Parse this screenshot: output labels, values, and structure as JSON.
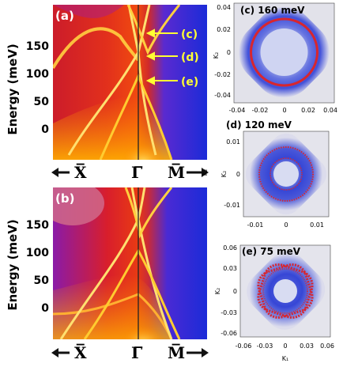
{
  "panel_a": {
    "label": "(a)",
    "annotations": [
      "(c)",
      "(d)",
      "(e)"
    ],
    "y_title": "Energy (meV)",
    "y_ticks": [
      "150",
      "100",
      "50",
      "0"
    ],
    "k_labels": [
      "X̅",
      "Γ̅",
      "M̅"
    ]
  },
  "panel_b": {
    "label": "(b)",
    "y_title": "Energy (meV)",
    "y_ticks": [
      "150",
      "100",
      "50",
      "0"
    ],
    "k_labels": [
      "X̅",
      "Γ̅",
      "M̅"
    ]
  },
  "panel_c": {
    "title": "(c) 160 meV",
    "y_ticks": [
      "0.04",
      "0.02",
      "0",
      "-0.02",
      "-0.04"
    ],
    "x_ticks": [
      "-0.04",
      "-0.02",
      "0",
      "0.02",
      "0.04"
    ],
    "y_axis": "K₂"
  },
  "panel_d": {
    "title": "(d) 120 meV",
    "y_ticks": [
      "0.01",
      "0",
      "-0.01"
    ],
    "x_ticks": [
      "-0.01",
      "0",
      "0.01"
    ],
    "y_axis": "K₂",
    "side_label": "K₂"
  },
  "panel_e": {
    "title": "(e) 75 meV",
    "y_ticks": [
      "0.06",
      "0.03",
      "0",
      "-0.03",
      "-0.06"
    ],
    "x_ticks": [
      "-0.06",
      "-0.03",
      "0",
      "0.03",
      "0.06"
    ],
    "y_axis": "K₂",
    "x_axis": "K₁"
  },
  "colors": {
    "heat_blue": "#1a2bd6",
    "heat_red": "#e0201a",
    "heat_orange": "#ff8c00",
    "heat_yellow": "#ffe95a",
    "arrow_yellow": "#ffff33",
    "map_red": "#d8262e",
    "map_blue": "#3a4ad8"
  }
}
